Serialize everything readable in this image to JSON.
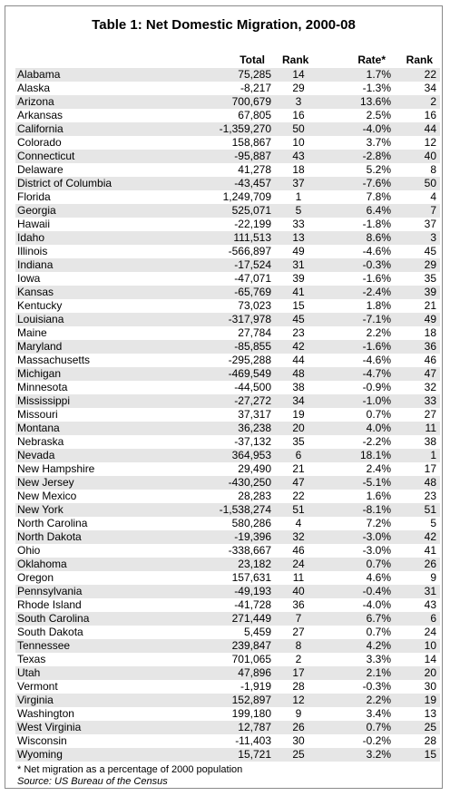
{
  "title": "Table 1: Net Domestic Migration, 2000-08",
  "headers": {
    "total": "Total",
    "rank1": "Rank",
    "rate": "Rate*",
    "rank2": "Rank"
  },
  "rows": [
    {
      "state": "Alabama",
      "total": "75,285",
      "rank1": "14",
      "rate": "1.7%",
      "rank2": "22"
    },
    {
      "state": "Alaska",
      "total": "-8,217",
      "rank1": "29",
      "rate": "-1.3%",
      "rank2": "34"
    },
    {
      "state": "Arizona",
      "total": "700,679",
      "rank1": "3",
      "rate": "13.6%",
      "rank2": "2"
    },
    {
      "state": "Arkansas",
      "total": "67,805",
      "rank1": "16",
      "rate": "2.5%",
      "rank2": "16"
    },
    {
      "state": "California",
      "total": "-1,359,270",
      "rank1": "50",
      "rate": "-4.0%",
      "rank2": "44"
    },
    {
      "state": "Colorado",
      "total": "158,867",
      "rank1": "10",
      "rate": "3.7%",
      "rank2": "12"
    },
    {
      "state": "Connecticut",
      "total": "-95,887",
      "rank1": "43",
      "rate": "-2.8%",
      "rank2": "40"
    },
    {
      "state": "Delaware",
      "total": "41,278",
      "rank1": "18",
      "rate": "5.2%",
      "rank2": "8"
    },
    {
      "state": "District of Columbia",
      "total": "-43,457",
      "rank1": "37",
      "rate": "-7.6%",
      "rank2": "50"
    },
    {
      "state": "Florida",
      "total": "1,249,709",
      "rank1": "1",
      "rate": "7.8%",
      "rank2": "4"
    },
    {
      "state": "Georgia",
      "total": "525,071",
      "rank1": "5",
      "rate": "6.4%",
      "rank2": "7"
    },
    {
      "state": "Hawaii",
      "total": "-22,199",
      "rank1": "33",
      "rate": "-1.8%",
      "rank2": "37"
    },
    {
      "state": "Idaho",
      "total": "111,513",
      "rank1": "13",
      "rate": "8.6%",
      "rank2": "3"
    },
    {
      "state": "Illinois",
      "total": "-566,897",
      "rank1": "49",
      "rate": "-4.6%",
      "rank2": "45"
    },
    {
      "state": "Indiana",
      "total": "-17,524",
      "rank1": "31",
      "rate": "-0.3%",
      "rank2": "29"
    },
    {
      "state": "Iowa",
      "total": "-47,071",
      "rank1": "39",
      "rate": "-1.6%",
      "rank2": "35"
    },
    {
      "state": "Kansas",
      "total": "-65,769",
      "rank1": "41",
      "rate": "-2.4%",
      "rank2": "39"
    },
    {
      "state": "Kentucky",
      "total": "73,023",
      "rank1": "15",
      "rate": "1.8%",
      "rank2": "21"
    },
    {
      "state": "Louisiana",
      "total": "-317,978",
      "rank1": "45",
      "rate": "-7.1%",
      "rank2": "49"
    },
    {
      "state": "Maine",
      "total": "27,784",
      "rank1": "23",
      "rate": "2.2%",
      "rank2": "18"
    },
    {
      "state": "Maryland",
      "total": "-85,855",
      "rank1": "42",
      "rate": "-1.6%",
      "rank2": "36"
    },
    {
      "state": "Massachusetts",
      "total": "-295,288",
      "rank1": "44",
      "rate": "-4.6%",
      "rank2": "46"
    },
    {
      "state": "Michigan",
      "total": "-469,549",
      "rank1": "48",
      "rate": "-4.7%",
      "rank2": "47"
    },
    {
      "state": "Minnesota",
      "total": "-44,500",
      "rank1": "38",
      "rate": "-0.9%",
      "rank2": "32"
    },
    {
      "state": "Mississippi",
      "total": "-27,272",
      "rank1": "34",
      "rate": "-1.0%",
      "rank2": "33"
    },
    {
      "state": "Missouri",
      "total": "37,317",
      "rank1": "19",
      "rate": "0.7%",
      "rank2": "27"
    },
    {
      "state": "Montana",
      "total": "36,238",
      "rank1": "20",
      "rate": "4.0%",
      "rank2": "11"
    },
    {
      "state": "Nebraska",
      "total": "-37,132",
      "rank1": "35",
      "rate": "-2.2%",
      "rank2": "38"
    },
    {
      "state": "Nevada",
      "total": "364,953",
      "rank1": "6",
      "rate": "18.1%",
      "rank2": "1"
    },
    {
      "state": "New Hampshire",
      "total": "29,490",
      "rank1": "21",
      "rate": "2.4%",
      "rank2": "17"
    },
    {
      "state": "New Jersey",
      "total": "-430,250",
      "rank1": "47",
      "rate": "-5.1%",
      "rank2": "48"
    },
    {
      "state": "New Mexico",
      "total": "28,283",
      "rank1": "22",
      "rate": "1.6%",
      "rank2": "23"
    },
    {
      "state": "New York",
      "total": "-1,538,274",
      "rank1": "51",
      "rate": "-8.1%",
      "rank2": "51"
    },
    {
      "state": "North Carolina",
      "total": "580,286",
      "rank1": "4",
      "rate": "7.2%",
      "rank2": "5"
    },
    {
      "state": "North Dakota",
      "total": "-19,396",
      "rank1": "32",
      "rate": "-3.0%",
      "rank2": "42"
    },
    {
      "state": "Ohio",
      "total": "-338,667",
      "rank1": "46",
      "rate": "-3.0%",
      "rank2": "41"
    },
    {
      "state": "Oklahoma",
      "total": "23,182",
      "rank1": "24",
      "rate": "0.7%",
      "rank2": "26"
    },
    {
      "state": "Oregon",
      "total": "157,631",
      "rank1": "11",
      "rate": "4.6%",
      "rank2": "9"
    },
    {
      "state": "Pennsylvania",
      "total": "-49,193",
      "rank1": "40",
      "rate": "-0.4%",
      "rank2": "31"
    },
    {
      "state": "Rhode Island",
      "total": "-41,728",
      "rank1": "36",
      "rate": "-4.0%",
      "rank2": "43"
    },
    {
      "state": "South Carolina",
      "total": "271,449",
      "rank1": "7",
      "rate": "6.7%",
      "rank2": "6"
    },
    {
      "state": "South Dakota",
      "total": "5,459",
      "rank1": "27",
      "rate": "0.7%",
      "rank2": "24"
    },
    {
      "state": "Tennessee",
      "total": "239,847",
      "rank1": "8",
      "rate": "4.2%",
      "rank2": "10"
    },
    {
      "state": "Texas",
      "total": "701,065",
      "rank1": "2",
      "rate": "3.3%",
      "rank2": "14"
    },
    {
      "state": "Utah",
      "total": "47,896",
      "rank1": "17",
      "rate": "2.1%",
      "rank2": "20"
    },
    {
      "state": "Vermont",
      "total": "-1,919",
      "rank1": "28",
      "rate": "-0.3%",
      "rank2": "30"
    },
    {
      "state": "Virginia",
      "total": "152,897",
      "rank1": "12",
      "rate": "2.2%",
      "rank2": "19"
    },
    {
      "state": "Washington",
      "total": "199,180",
      "rank1": "9",
      "rate": "3.4%",
      "rank2": "13"
    },
    {
      "state": "West Virginia",
      "total": "12,787",
      "rank1": "26",
      "rate": "0.7%",
      "rank2": "25"
    },
    {
      "state": "Wisconsin",
      "total": "-11,403",
      "rank1": "30",
      "rate": "-0.2%",
      "rank2": "28"
    },
    {
      "state": "Wyoming",
      "total": "15,721",
      "rank1": "25",
      "rate": "3.2%",
      "rank2": "15"
    }
  ],
  "footnote": "* Net migration as a percentage of 2000 population",
  "source": "Source: US Bureau of the Census"
}
